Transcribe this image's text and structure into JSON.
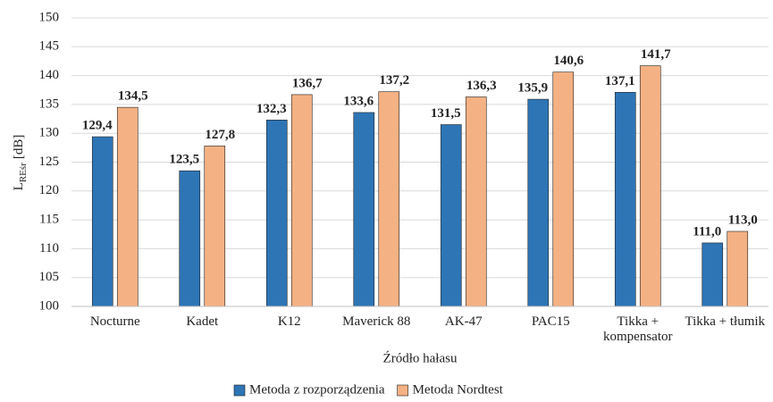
{
  "chart_data": {
    "type": "bar",
    "ylabel": "L",
    "ylabel_sub": "REśr",
    "ylabel_unit": "[dB]",
    "xlabel": "Źródło hałasu",
    "categories": [
      "Nocturne",
      "Kadet",
      "K12",
      "Maverick 88",
      "AK-47",
      "PAC15",
      "Tikka + kompensator",
      "Tikka + tłumik"
    ],
    "series": [
      {
        "name": "Metoda z rozporządzenia",
        "color": "#2e75b6",
        "values": [
          129.4,
          123.5,
          132.3,
          133.6,
          131.5,
          135.9,
          137.1,
          111.0
        ],
        "value_labels": [
          "129,4",
          "123,5",
          "132,3",
          "133,6",
          "131,5",
          "135,9",
          "137,1",
          "111,0"
        ]
      },
      {
        "name": "Metoda Nordtest",
        "color": "#f4b183",
        "values": [
          134.5,
          127.8,
          136.7,
          137.2,
          136.3,
          140.6,
          141.7,
          113.0
        ],
        "value_labels": [
          "134,5",
          "127,8",
          "136,7",
          "137,2",
          "136,3",
          "140,6",
          "141,7",
          "113,0"
        ]
      }
    ],
    "ylim": [
      100,
      150
    ],
    "yticks": [
      100,
      105,
      110,
      115,
      120,
      125,
      130,
      135,
      140,
      145,
      150
    ],
    "grid": true,
    "legend": "bottom"
  }
}
